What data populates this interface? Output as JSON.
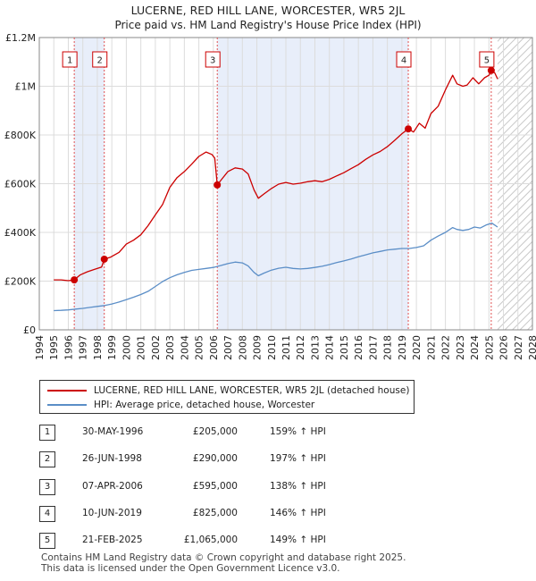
{
  "chart_data": {
    "type": "line",
    "title": "LUCERNE, RED HILL LANE, WORCESTER, WR5 2JL",
    "subtitle": "Price paid vs. HM Land Registry's House Price Index (HPI)",
    "xlabel": "",
    "ylabel": "",
    "xlim": [
      1994,
      2028
    ],
    "ylim": [
      0,
      1200000
    ],
    "x_ticks": [
      "1994",
      "1995",
      "1996",
      "1997",
      "1998",
      "1999",
      "2000",
      "2001",
      "2002",
      "2003",
      "2004",
      "2005",
      "2006",
      "2007",
      "2008",
      "2009",
      "2010",
      "2011",
      "2012",
      "2013",
      "2014",
      "2015",
      "2016",
      "2017",
      "2018",
      "2019",
      "2020",
      "2021",
      "2022",
      "2023",
      "2024",
      "2025",
      "2026",
      "2027",
      "2028"
    ],
    "y_ticks": [
      {
        "value": 0,
        "label": "£0"
      },
      {
        "value": 200000,
        "label": "£200K"
      },
      {
        "value": 400000,
        "label": "£400K"
      },
      {
        "value": 600000,
        "label": "£600K"
      },
      {
        "value": 800000,
        "label": "£800K"
      },
      {
        "value": 1000000,
        "label": "£1M"
      },
      {
        "value": 1200000,
        "label": "£1.2M"
      }
    ],
    "grid": true,
    "shaded_periods": [
      [
        1996.41,
        1998.48
      ],
      [
        2006.27,
        2019.44
      ]
    ],
    "hatched_period": [
      2025.6,
      2028
    ],
    "series": [
      {
        "name": "LUCERNE, RED HILL LANE, WORCESTER, WR5 2JL (detached house)",
        "color": "#cc0000",
        "x": [
          1995.0,
          1995.5,
          1996.0,
          1996.41,
          1996.8,
          1997.3,
          1997.8,
          1998.3,
          1998.48,
          1998.9,
          1999.5,
          2000.0,
          2000.5,
          2001.0,
          2001.5,
          2002.0,
          2002.5,
          2003.0,
          2003.5,
          2004.0,
          2004.5,
          2005.0,
          2005.5,
          2005.9,
          2006.1,
          2006.27,
          2006.6,
          2007.0,
          2007.5,
          2008.0,
          2008.4,
          2008.8,
          2009.1,
          2009.5,
          2010.0,
          2010.5,
          2011.0,
          2011.5,
          2012.0,
          2012.5,
          2013.0,
          2013.5,
          2014.0,
          2014.5,
          2015.0,
          2015.5,
          2016.0,
          2016.5,
          2017.0,
          2017.5,
          2018.0,
          2018.5,
          2019.0,
          2019.44,
          2019.8,
          2020.2,
          2020.6,
          2021.0,
          2021.5,
          2022.0,
          2022.5,
          2022.8,
          2023.2,
          2023.5,
          2023.9,
          2024.3,
          2024.7,
          2025.0,
          2025.16,
          2025.4,
          2025.6
        ],
        "values": [
          205000,
          205000,
          202000,
          205000,
          225000,
          238000,
          248000,
          258000,
          290000,
          298000,
          318000,
          352000,
          368000,
          390000,
          428000,
          472000,
          515000,
          585000,
          625000,
          650000,
          680000,
          712000,
          730000,
          720000,
          705000,
          595000,
          620000,
          650000,
          665000,
          660000,
          640000,
          575000,
          540000,
          558000,
          580000,
          598000,
          605000,
          598000,
          602000,
          608000,
          612000,
          608000,
          618000,
          632000,
          645000,
          662000,
          678000,
          700000,
          718000,
          732000,
          752000,
          778000,
          805000,
          825000,
          812000,
          848000,
          828000,
          888000,
          918000,
          985000,
          1045000,
          1010000,
          1000000,
          1005000,
          1035000,
          1010000,
          1035000,
          1045000,
          1065000,
          1055000,
          1030000
        ]
      },
      {
        "name": "HPI: Average price, detached house, Worcester",
        "color": "#5b8ec7",
        "x": [
          1995.0,
          1995.5,
          1996.0,
          1996.5,
          1997.0,
          1997.5,
          1998.0,
          1998.5,
          1999.0,
          1999.5,
          2000.0,
          2000.5,
          2001.0,
          2001.5,
          2002.0,
          2002.5,
          2003.0,
          2003.5,
          2004.0,
          2004.5,
          2005.0,
          2005.5,
          2006.0,
          2006.5,
          2007.0,
          2007.5,
          2008.0,
          2008.4,
          2008.8,
          2009.1,
          2009.5,
          2010.0,
          2010.5,
          2011.0,
          2011.5,
          2012.0,
          2012.5,
          2013.0,
          2013.5,
          2014.0,
          2014.5,
          2015.0,
          2015.5,
          2016.0,
          2016.5,
          2017.0,
          2017.5,
          2018.0,
          2018.5,
          2019.0,
          2019.5,
          2020.0,
          2020.5,
          2021.0,
          2021.5,
          2022.0,
          2022.5,
          2022.8,
          2023.2,
          2023.6,
          2024.0,
          2024.4,
          2024.8,
          2025.2,
          2025.6
        ],
        "values": [
          79000,
          80000,
          82000,
          85000,
          88000,
          92000,
          96000,
          100000,
          106000,
          114000,
          124000,
          134000,
          145000,
          158000,
          178000,
          198000,
          214000,
          226000,
          236000,
          244000,
          248000,
          252000,
          256000,
          264000,
          272000,
          278000,
          275000,
          262000,
          236000,
          222000,
          233000,
          245000,
          253000,
          257000,
          252000,
          250000,
          252000,
          256000,
          261000,
          268000,
          276000,
          283000,
          291000,
          300000,
          308000,
          316000,
          322000,
          328000,
          331000,
          334000,
          334000,
          338000,
          345000,
          368000,
          385000,
          400000,
          420000,
          412000,
          408000,
          412000,
          422000,
          418000,
          430000,
          438000,
          422000
        ]
      }
    ],
    "sales": [
      {
        "num": "1",
        "x": 1996.41,
        "value": 205000,
        "date": "30-MAY-1996",
        "price": "£205,000",
        "hpi": "159% ↑ HPI"
      },
      {
        "num": "2",
        "x": 1998.48,
        "value": 290000,
        "date": "26-JUN-1998",
        "price": "£290,000",
        "hpi": "197% ↑ HPI"
      },
      {
        "num": "3",
        "x": 2006.27,
        "value": 595000,
        "date": "07-APR-2006",
        "price": "£595,000",
        "hpi": "138% ↑ HPI"
      },
      {
        "num": "4",
        "x": 2019.44,
        "value": 825000,
        "date": "10-JUN-2019",
        "price": "£825,000",
        "hpi": "146% ↑ HPI"
      },
      {
        "num": "5",
        "x": 2025.16,
        "value": 1065000,
        "date": "21-FEB-2025",
        "price": "£1,065,000",
        "hpi": "149% ↑ HPI"
      }
    ]
  },
  "legend": {
    "property_label": "LUCERNE, RED HILL LANE, WORCESTER, WR5 2JL (detached house)",
    "hpi_label": "HPI: Average price, detached house, Worcester"
  },
  "footer": {
    "line1": "Contains HM Land Registry data © Crown copyright and database right 2025.",
    "line2": "This data is licensed under the Open Government Licence v3.0."
  }
}
